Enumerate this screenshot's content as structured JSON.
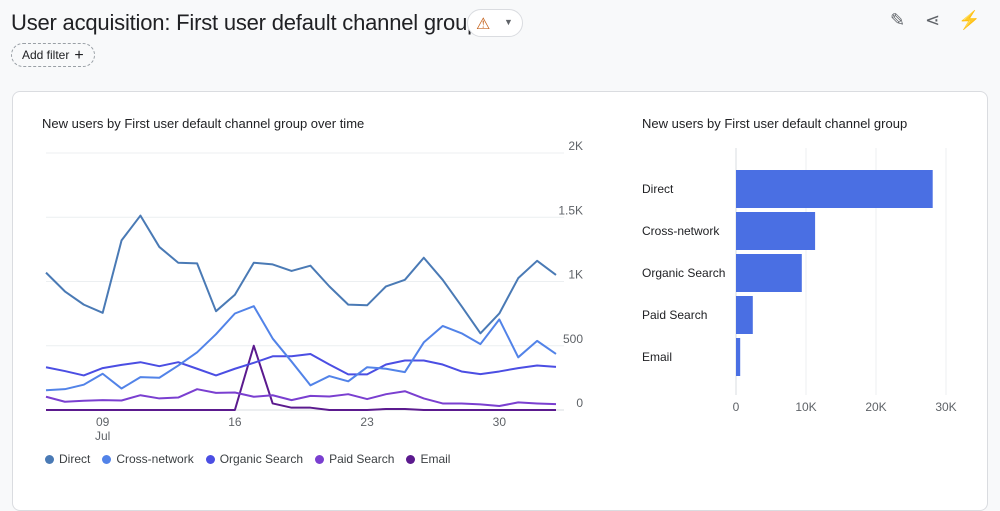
{
  "header": {
    "title": "User acquisition: First user default channel group",
    "warning_icon": "warning-triangle-icon",
    "add_filter_label": "Add filter",
    "add_filter_icon": "+",
    "tools": [
      {
        "icon": "edit-report-icon",
        "glyph": "✎"
      },
      {
        "icon": "share-icon",
        "glyph": "⋖"
      },
      {
        "icon": "insights-icon",
        "glyph": "⚡"
      }
    ]
  },
  "chart_data": [
    {
      "type": "line",
      "title": "New users by First user default channel group over time",
      "x": [
        "Jul 06",
        "Jul 07",
        "Jul 08",
        "Jul 09",
        "Jul 10",
        "Jul 11",
        "Jul 12",
        "Jul 13",
        "Jul 14",
        "Jul 15",
        "Jul 16",
        "Jul 17",
        "Jul 18",
        "Jul 19",
        "Jul 20",
        "Jul 21",
        "Jul 22",
        "Jul 23",
        "Jul 24",
        "Jul 25",
        "Jul 26",
        "Jul 27",
        "Jul 28",
        "Jul 29",
        "Jul 30",
        "Jul 31",
        "Aug 01",
        "Aug 02"
      ],
      "x_ticks": [
        {
          "label": "09",
          "sub": "Jul",
          "index": 3
        },
        {
          "label": "16",
          "sub": "",
          "index": 10
        },
        {
          "label": "23",
          "sub": "",
          "index": 17
        },
        {
          "label": "30",
          "sub": "",
          "index": 24
        }
      ],
      "y_ticks": [
        "0",
        "500",
        "1K",
        "1.5K",
        "2K"
      ],
      "ylim": [
        0,
        2000
      ],
      "grid": true,
      "legend": "bottom",
      "series": [
        {
          "name": "Direct",
          "color": "#4a7ab5",
          "values": [
            1069,
            923,
            820,
            756,
            1320,
            1513,
            1269,
            1146,
            1141,
            769,
            897,
            1146,
            1133,
            1082,
            1123,
            962,
            820,
            815,
            962,
            1013,
            1185,
            1013,
            808,
            597,
            751,
            1026,
            1161,
            1051
          ]
        },
        {
          "name": "Cross-network",
          "color": "#5283e8",
          "values": [
            154,
            162,
            197,
            282,
            167,
            256,
            251,
            346,
            449,
            590,
            751,
            808,
            556,
            377,
            192,
            264,
            223,
            333,
            321,
            295,
            526,
            654,
            597,
            513,
            705,
            410,
            538,
            436
          ]
        },
        {
          "name": "Organic Search",
          "color": "#4b4ee3",
          "values": [
            333,
            303,
            269,
            326,
            351,
            372,
            341,
            372,
            321,
            269,
            321,
            367,
            418,
            418,
            436,
            354,
            277,
            277,
            354,
            385,
            385,
            354,
            300,
            279,
            300,
            326,
            346,
            336
          ]
        },
        {
          "name": "Paid Search",
          "color": "#7a3fd0",
          "values": [
            103,
            64,
            72,
            77,
            74,
            115,
            90,
            97,
            162,
            133,
            136,
            103,
            115,
            77,
            110,
            105,
            123,
            85,
            123,
            146,
            90,
            51,
            51,
            44,
            31,
            59,
            51,
            46
          ]
        },
        {
          "name": "Email",
          "color": "#5b1a8e",
          "values": [
            0,
            0,
            0,
            0,
            0,
            0,
            0,
            0,
            0,
            0,
            0,
            500,
            51,
            18,
            18,
            0,
            0,
            0,
            8,
            8,
            0,
            0,
            0,
            0,
            0,
            0,
            0,
            0
          ]
        }
      ]
    },
    {
      "type": "bar",
      "orientation": "horizontal",
      "title": "New users by First user default channel group",
      "categories": [
        "Direct",
        "Cross-network",
        "Organic Search",
        "Paid Search",
        "Email"
      ],
      "values": [
        28100,
        11300,
        9400,
        2400,
        600
      ],
      "x_ticks": [
        "0",
        "10K",
        "20K",
        "30K"
      ],
      "xlim": [
        0,
        30000
      ],
      "color": "#4a6fe3",
      "grid": true
    }
  ]
}
